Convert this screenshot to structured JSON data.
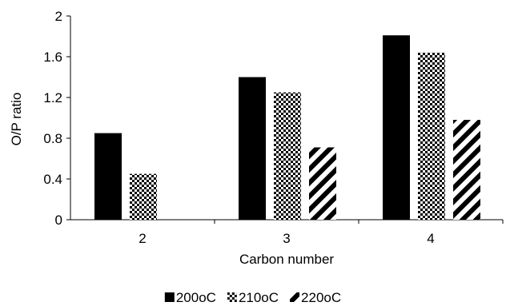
{
  "chart_data": {
    "type": "bar",
    "title": "",
    "xlabel": "Carbon number",
    "ylabel": "O/P ratio",
    "categories": [
      "2",
      "3",
      "4"
    ],
    "ylim": [
      0,
      2
    ],
    "yticks": [
      "0",
      "0.4",
      "0.8",
      "1.2",
      "1.6",
      "2"
    ],
    "legend_position": "bottom",
    "grid": false,
    "series": [
      {
        "name": "200oC",
        "values": [
          0.85,
          1.4,
          1.81
        ],
        "fill": "solid-black"
      },
      {
        "name": "210oC",
        "values": [
          0.45,
          1.25,
          1.64
        ],
        "fill": "black-checker"
      },
      {
        "name": "220oC",
        "values": [
          null,
          0.71,
          0.98
        ],
        "fill": "diagonal-stripes"
      }
    ]
  }
}
